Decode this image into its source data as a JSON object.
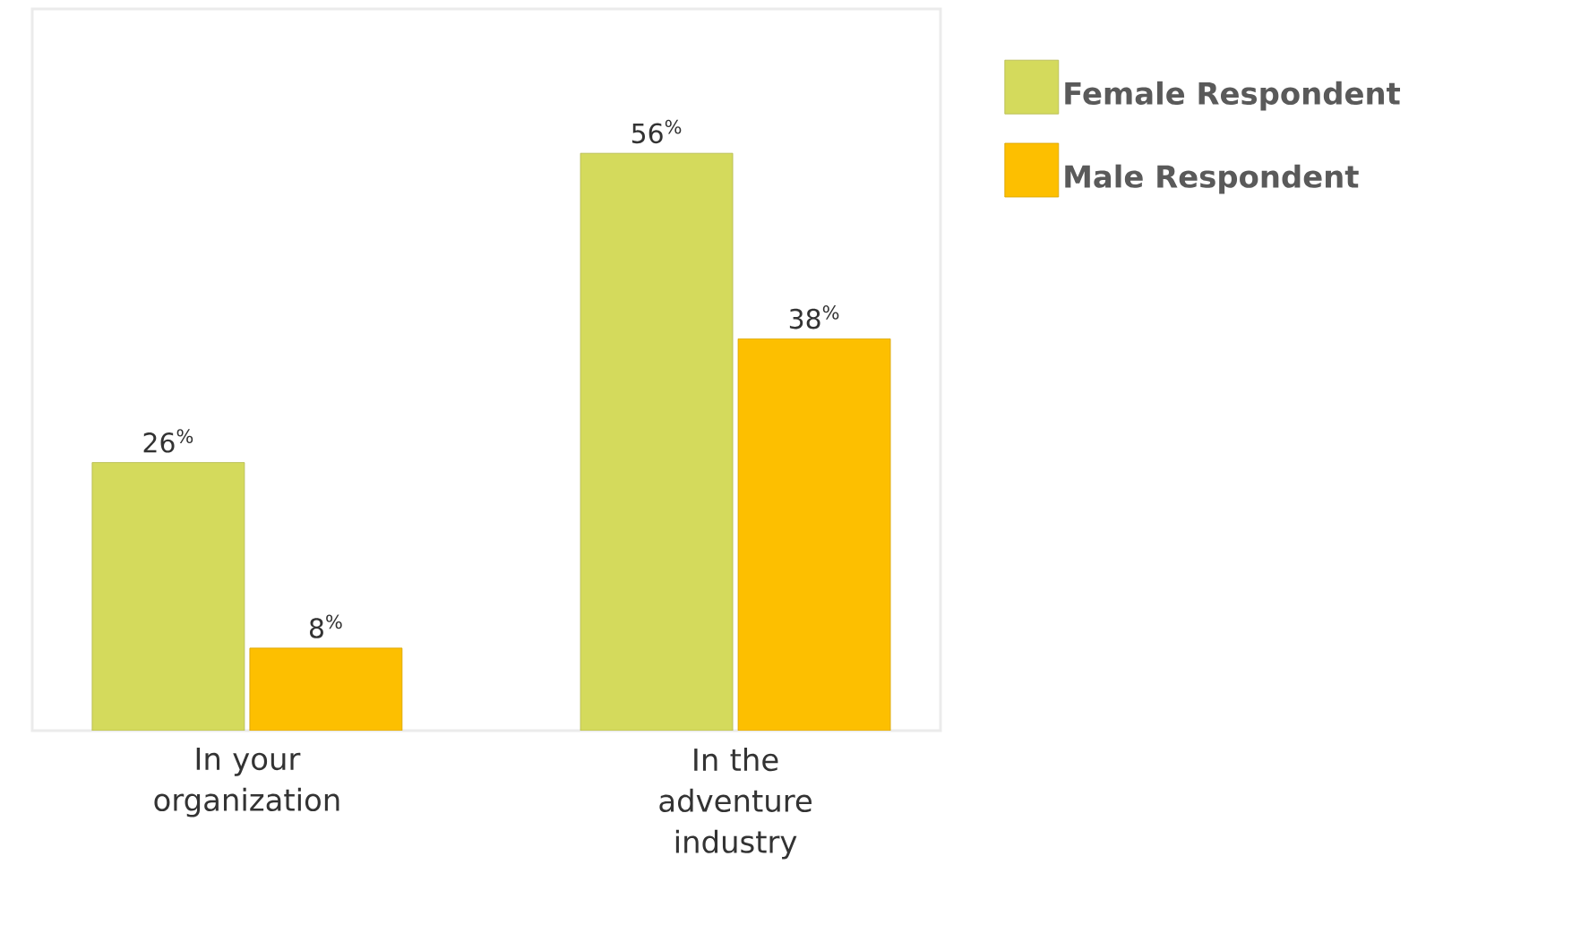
{
  "chart_data": {
    "type": "bar",
    "categories": [
      "In your organization",
      "In the adventure industry"
    ],
    "series": [
      {
        "name": "Female Respondent",
        "color": "#d4da5c",
        "values": [
          26,
          56
        ],
        "value_labels": [
          "26$^{%}$",
          "56$^{%}$"
        ]
      },
      {
        "name": "Male Respondent",
        "color": "#fdbf00",
        "values": [
          8,
          38
        ],
        "value_labels": [
          "8$^{%}$",
          "38$^{%}$"
        ]
      }
    ],
    "ylim": [
      0,
      70
    ],
    "legend": "right",
    "grid": false
  }
}
